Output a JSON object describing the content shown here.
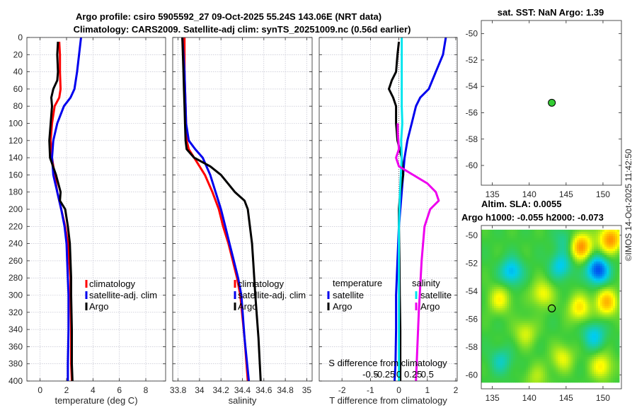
{
  "title": {
    "line1": "Argo profile: csiro 5905592_27 09-Oct-2025 55.24S 143.06E (NRT data)",
    "line2": "Climatology: CARS2009. Satellite-adj clim: synTS_20251009.nc (0.56d earlier)"
  },
  "watermark": "©IMOS 14-Oct-2025 11:42:50",
  "colors": {
    "red": "#ff0000",
    "blue": "#0000ee",
    "black": "#000000",
    "cyan": "#00e5ee",
    "magenta": "#ee00ee",
    "green": "#33cc33"
  },
  "chart_data": [
    {
      "id": "temperature",
      "type": "line",
      "xlabel": "temperature (deg C)",
      "ylabel": "",
      "xlim": [
        -1,
        9.5
      ],
      "ylim": [
        0,
        400
      ],
      "y_reversed": true,
      "xticks": [
        0,
        2,
        4,
        6,
        8
      ],
      "xtick_labels": [
        "0",
        "2",
        "4",
        "6",
        "8"
      ],
      "yticks": [
        0,
        20,
        40,
        60,
        80,
        100,
        120,
        140,
        160,
        180,
        200,
        220,
        240,
        260,
        280,
        300,
        320,
        340,
        360,
        380,
        400
      ],
      "ytick_labels": [
        "0",
        "20",
        "40",
        "60",
        "80",
        "100",
        "120",
        "140",
        "160",
        "180",
        "200",
        "220",
        "240",
        "260",
        "280",
        "300",
        "320",
        "340",
        "360",
        "380",
        "400"
      ],
      "grid": true,
      "legend": {
        "position": "right",
        "entries": [
          "climatology",
          "satellite-adj. clim",
          "Argo"
        ]
      },
      "series": [
        {
          "name": "climatology",
          "color": "red",
          "x": [
            1.45,
            1.5,
            1.5,
            1.55,
            1.45,
            1.1,
            0.9,
            0.8,
            0.9,
            1.1,
            1.3,
            1.6,
            1.9,
            2.1,
            2.2,
            2.3,
            2.3,
            2.35,
            2.35,
            2.4
          ],
          "y": [
            5,
            20,
            40,
            60,
            70,
            80,
            100,
            120,
            140,
            160,
            180,
            200,
            220,
            240,
            260,
            280,
            300,
            340,
            380,
            400
          ]
        },
        {
          "name": "satellite-adj. clim",
          "color": "blue",
          "x": [
            3.1,
            2.95,
            2.8,
            2.6,
            2.3,
            1.8,
            1.3,
            1.0,
            0.9,
            1.0,
            1.3,
            1.6,
            1.85,
            2.0,
            2.05,
            2.1,
            2.15,
            2.15,
            2.1,
            2.1
          ],
          "y": [
            0,
            20,
            40,
            60,
            70,
            80,
            100,
            120,
            140,
            160,
            180,
            200,
            220,
            240,
            260,
            280,
            300,
            340,
            380,
            400
          ]
        },
        {
          "name": "Argo",
          "color": "black",
          "x": [
            1.35,
            1.3,
            1.35,
            1.3,
            1.0,
            0.85,
            0.9,
            0.8,
            0.7,
            0.75,
            1.2,
            1.55,
            1.5,
            1.9,
            2.1,
            2.25,
            2.3,
            2.35,
            2.35,
            2.4,
            2.4,
            2.45
          ],
          "y": [
            5,
            20,
            40,
            50,
            60,
            70,
            80,
            100,
            120,
            140,
            160,
            180,
            190,
            200,
            220,
            240,
            260,
            280,
            300,
            340,
            380,
            400
          ]
        }
      ]
    },
    {
      "id": "salinity",
      "type": "line",
      "xlabel": "salinity",
      "ylabel": "",
      "xlim": [
        33.75,
        35.05
      ],
      "ylim": [
        0,
        400
      ],
      "y_reversed": true,
      "xticks": [
        33.8,
        34,
        34.2,
        34.4,
        34.6,
        34.8,
        35
      ],
      "xtick_labels": [
        "33.8",
        "34",
        "34.2",
        "34.4",
        "34.6",
        "34.8",
        "35"
      ],
      "grid": true,
      "legend": {
        "position": "right",
        "entries": [
          "climatology",
          "satellite-adj. clim",
          "Argo"
        ]
      },
      "series": [
        {
          "name": "climatology",
          "color": "red",
          "x": [
            33.86,
            33.86,
            33.86,
            33.865,
            33.87,
            33.875,
            33.88,
            33.9,
            33.95,
            34.05,
            34.12,
            34.18,
            34.22,
            34.27,
            34.31,
            34.35,
            34.38,
            34.42,
            34.45
          ],
          "y": [
            0,
            20,
            40,
            60,
            80,
            100,
            120,
            130,
            140,
            160,
            180,
            200,
            220,
            240,
            260,
            280,
            300,
            350,
            400
          ]
        },
        {
          "name": "satellite-adj. clim",
          "color": "blue",
          "x": [
            33.84,
            33.85,
            33.86,
            33.865,
            33.87,
            33.875,
            33.9,
            33.96,
            34.03,
            34.1,
            34.15,
            34.2,
            34.24,
            34.28,
            34.32,
            34.36,
            34.39,
            34.42,
            34.46
          ],
          "y": [
            0,
            20,
            40,
            60,
            80,
            100,
            120,
            130,
            140,
            160,
            180,
            200,
            220,
            240,
            260,
            280,
            300,
            350,
            400
          ]
        },
        {
          "name": "Argo",
          "color": "black",
          "x": [
            33.84,
            33.845,
            33.85,
            33.855,
            33.86,
            33.865,
            33.87,
            33.88,
            33.95,
            34.1,
            34.2,
            34.33,
            34.42,
            34.45,
            34.47,
            34.49,
            34.5,
            34.51,
            34.52,
            34.55,
            34.57
          ],
          "y": [
            0,
            20,
            40,
            60,
            80,
            100,
            120,
            130,
            140,
            150,
            160,
            180,
            190,
            200,
            220,
            240,
            260,
            280,
            300,
            350,
            400
          ]
        }
      ]
    },
    {
      "id": "difference",
      "type": "line",
      "xlabel": "T difference from climatology",
      "ylabel": "",
      "xlim": [
        -2.8,
        2.05
      ],
      "ylim": [
        0,
        400
      ],
      "y_reversed": true,
      "xticks": [
        -2,
        -1,
        0,
        1,
        2
      ],
      "xtick_labels": [
        "-2",
        "-1",
        "0",
        "1",
        "2"
      ],
      "secondary_axis_label": "S difference from climatology",
      "secondary_ticks": [
        -0.5,
        -0.25,
        0,
        0.25,
        0.5
      ],
      "secondary_tick_labels": [
        "-0.5",
        "-0.25",
        "0",
        "0.25",
        "0.5"
      ],
      "grid": true,
      "legend": {
        "position": "right",
        "temperature_title": "temperature",
        "salinity_title": "salinity",
        "entries": [
          "satellite",
          "Argo",
          "satellite",
          "Argo"
        ]
      },
      "series": [
        {
          "name": "T satellite",
          "color": "blue",
          "x": [
            1.65,
            1.55,
            1.3,
            1.05,
            0.75,
            0.6,
            0.45,
            0.3,
            0.2,
            0.15,
            0.1,
            0.05,
            0.0,
            -0.05,
            -0.1,
            -0.1,
            -0.12,
            -0.15
          ],
          "y": [
            0,
            20,
            40,
            60,
            70,
            80,
            100,
            120,
            140,
            160,
            180,
            200,
            220,
            260,
            300,
            340,
            380,
            400
          ]
        },
        {
          "name": "T Argo",
          "color": "black",
          "x": [
            0.0,
            -0.05,
            -0.1,
            -0.25,
            -0.35,
            -0.2,
            -0.1,
            -0.1,
            -0.05,
            0.1,
            0.15,
            0.05,
            0.0,
            0.0,
            0.02,
            0.03,
            0.05,
            0.05,
            0.05
          ],
          "y": [
            5,
            20,
            40,
            50,
            60,
            70,
            80,
            100,
            120,
            140,
            160,
            180,
            200,
            220,
            260,
            300,
            340,
            380,
            400
          ]
        },
        {
          "name": "S satellite",
          "color": "cyan",
          "x": [
            0.05,
            0.05,
            0.05,
            0.06,
            0.04,
            0.05,
            0.02,
            0.0,
            0.0,
            0.0,
            0.0,
            0.0
          ],
          "y": [
            0,
            40,
            80,
            100,
            120,
            140,
            180,
            220,
            260,
            300,
            340,
            400
          ]
        },
        {
          "name": "S Argo",
          "color": "magenta",
          "x": [
            -0.02,
            -0.02,
            -0.01,
            0.0,
            -0.05,
            0.0,
            0.25,
            0.5,
            0.65,
            0.7,
            0.55,
            0.45,
            0.4,
            0.35,
            0.3
          ],
          "y": [
            100,
            110,
            120,
            130,
            140,
            150,
            160,
            170,
            180,
            190,
            200,
            220,
            260,
            320,
            400
          ]
        }
      ]
    },
    {
      "id": "sat-sst-map",
      "type": "scatter",
      "title": "sat. SST: NaN Argo: 1.39",
      "xlim": [
        133.5,
        152.5
      ],
      "ylim": [
        -61.5,
        -49
      ],
      "xticks": [
        135,
        140,
        145,
        150
      ],
      "xtick_labels": [
        "135",
        "140",
        "145",
        "150"
      ],
      "yticks": [
        -50,
        -52,
        -54,
        -56,
        -58,
        -60
      ],
      "ytick_labels": [
        "-50",
        "-52",
        "-54",
        "-56",
        "-58",
        "-60"
      ],
      "points": [
        {
          "name": "Argo float",
          "x": 143.06,
          "y": -55.24,
          "color": "green"
        }
      ]
    },
    {
      "id": "sla-map",
      "type": "heatmap",
      "title_line1": "Altim. SLA: 0.0055",
      "title_line2": "Argo h1000: -0.055 h2000: -0.073",
      "xlim": [
        133.5,
        152.5
      ],
      "ylim": [
        -61,
        -49.3
      ],
      "xticks": [
        135,
        140,
        145,
        150
      ],
      "xtick_labels": [
        "135",
        "140",
        "145",
        "150"
      ],
      "yticks": [
        -50,
        -52,
        -54,
        -56,
        -58,
        -60
      ],
      "ytick_labels": [
        "-50",
        "-52",
        "-54",
        "-56",
        "-58",
        "-60"
      ],
      "points": [
        {
          "name": "Argo float",
          "x": 143.06,
          "y": -55.24
        }
      ],
      "blobs": [
        {
          "x": 147.0,
          "y": -50.8,
          "v": 1.0
        },
        {
          "x": 151.0,
          "y": -50.3,
          "v": 1.0
        },
        {
          "x": 149.3,
          "y": -52.5,
          "v": -1.0
        },
        {
          "x": 137.6,
          "y": -52.6,
          "v": -0.6
        },
        {
          "x": 144.3,
          "y": -52.2,
          "v": -0.5
        },
        {
          "x": 150.5,
          "y": -54.8,
          "v": 0.8
        },
        {
          "x": 146.8,
          "y": -55.2,
          "v": 0.6
        },
        {
          "x": 136.0,
          "y": -54.6,
          "v": 0.5
        },
        {
          "x": 141.8,
          "y": -54.2,
          "v": 0.5
        },
        {
          "x": 148.8,
          "y": -57.2,
          "v": -0.5
        },
        {
          "x": 139.5,
          "y": -57.0,
          "v": 0.4
        },
        {
          "x": 144.5,
          "y": -58.8,
          "v": 0.45
        },
        {
          "x": 149.8,
          "y": -59.4,
          "v": 0.55
        },
        {
          "x": 136.2,
          "y": -59.0,
          "v": -0.35
        },
        {
          "x": 141.0,
          "y": -60.2,
          "v": 0.3
        },
        {
          "x": 145.0,
          "y": -50.4,
          "v": -0.3
        }
      ]
    }
  ]
}
